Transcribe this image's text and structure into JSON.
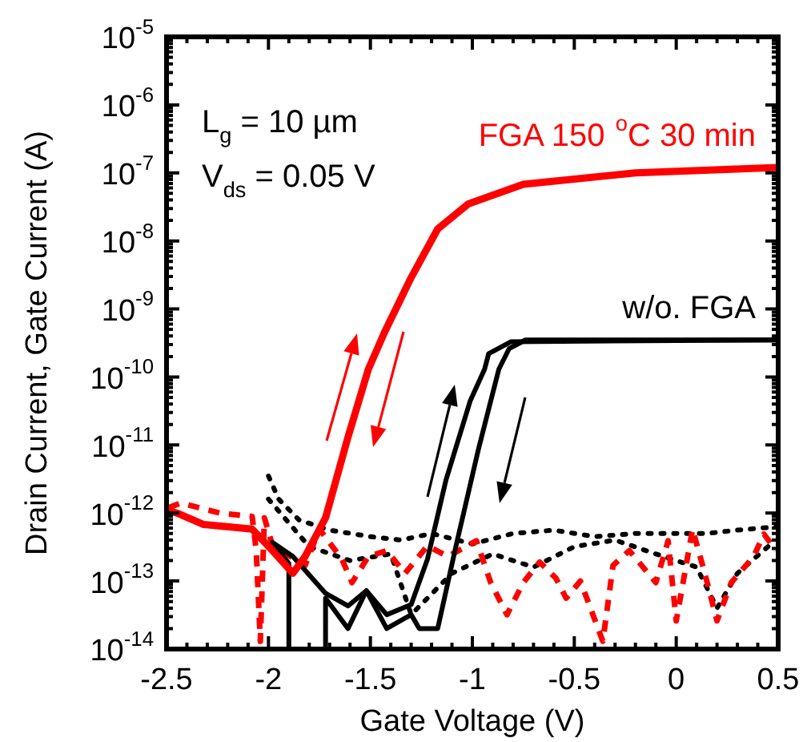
{
  "chart_data": {
    "type": "line",
    "xlabel": "Gate Voltage (V)",
    "ylabel": "Drain Current, Gate Current (A)",
    "log": "y",
    "grid": false,
    "legend": false,
    "marker": "none",
    "xlim": [
      -2.5,
      0.5
    ],
    "xticks": [
      -2.5,
      -2,
      -1.5,
      -1,
      -0.5,
      0,
      0.5
    ],
    "ylim": [
      1e-14,
      1e-05
    ],
    "yticks": [
      {
        "value": 1e-14,
        "label": "10$^{-14}$"
      },
      {
        "value": 1e-13,
        "label": "10$^{-13}$"
      },
      {
        "value": 1e-12,
        "label": "10$^{-12}$"
      },
      {
        "value": 1e-11,
        "label": "10$^{-11}$"
      },
      {
        "value": 1e-10,
        "label": "10$^{-10}$"
      },
      {
        "value": 1e-09,
        "label": "10$^{-9}$"
      },
      {
        "value": 1e-08,
        "label": "10$^{-8}$"
      },
      {
        "value": 1e-07,
        "label": "10$^{-7}$"
      },
      {
        "value": 1e-06,
        "label": "10$^{-6}$"
      },
      {
        "value": 1e-05,
        "label": "10$^{-5}$"
      }
    ],
    "annotations": [
      "L$_{g}$ = 10 µm",
      "V$_{ds}$ = 0.05 V",
      {
        "text": "FGA 150 $^{o}$C 30 min",
        "x": 0.5,
        "y": 1.2e-07
      },
      {
        "text": "w/o. FGA",
        "x": 0.5,
        "y": 3.5e-10
      }
    ],
    "series": [
      {
        "color": "#ff0000",
        "line_style": "solid",
        "x": [
          -2.5,
          -2.45,
          -2.32,
          -2.08,
          -1.98,
          -1.88,
          -1.82,
          -1.72,
          -1.61,
          -1.51,
          -1.43,
          -1.3,
          -1.17,
          -1.02,
          -0.75,
          -0.2,
          0.5
        ],
        "values": [
          1.1e-12,
          1e-12,
          6.8e-13,
          5.8e-13,
          2.8e-13,
          1.3e-13,
          2.3e-13,
          8.5e-13,
          1.3e-11,
          1.3e-10,
          4.6e-10,
          2.9e-09,
          1.5e-08,
          3.5e-08,
          6.8e-08,
          1e-07,
          1.2e-07
        ]
      },
      {
        "color": "#000000",
        "line_style": "solid",
        "x": [
          -1.9,
          -1.9,
          -1.98,
          -1.88,
          -1.72,
          -1.61,
          -1.52,
          -1.42,
          -1.3,
          -1.22,
          -1.13,
          -1.01,
          -0.94,
          -0.92,
          -0.81,
          0.5
        ],
        "values": [
          1e-14,
          1.8e-13,
          3.7e-13,
          2.3e-13,
          6.6e-14,
          4.3e-14,
          7.2e-14,
          3.2e-14,
          4.5e-14,
          2.1e-13,
          3e-12,
          4.5e-11,
          1.3e-10,
          2.2e-10,
          3.3e-10,
          3.5e-10
        ]
      },
      {
        "color": "#000000",
        "line_style": "solid",
        "x": [
          0.5,
          -0.74,
          -0.82,
          -0.87,
          -0.97,
          -1.08,
          -1.17,
          -1.26,
          -1.3,
          -1.42,
          -1.52,
          -1.61,
          -1.72,
          -1.72
        ],
        "values": [
          3.5e-10,
          3.5e-10,
          2.6e-10,
          1.3e-10,
          8.7e-12,
          3.3e-13,
          2e-14,
          2e-14,
          3.2e-14,
          2e-14,
          7.2e-14,
          2e-14,
          5.6e-14,
          1e-14
        ]
      },
      {
        "color": "#ff0000",
        "line_style": "dashed",
        "x": [
          -2.49,
          -2.43,
          -2.24,
          -2.08,
          -2.06,
          -2.04,
          -2.02,
          -1.98,
          -1.82,
          -1.75,
          -1.64,
          -1.59,
          -1.51,
          -1.42,
          -1.33,
          -1.22,
          -1.12,
          -0.98,
          -0.91,
          -0.83,
          -0.75,
          -0.67,
          -0.59,
          -0.54,
          -0.47,
          -0.36,
          -0.31,
          -0.23,
          -0.1,
          -0.04,
          0.0,
          0.08,
          0.14,
          0.2,
          0.27,
          0.38,
          0.43,
          0.49
        ],
        "values": [
          1.2e-12,
          1.4e-12,
          1e-12,
          8.9e-13,
          2.8e-13,
          1.3e-14,
          8.5e-13,
          3.3e-13,
          1.7e-13,
          5.8e-13,
          2.1e-13,
          9.5e-14,
          2.3e-13,
          2.8e-13,
          1.3e-13,
          3.3e-13,
          2.3e-13,
          3.9e-13,
          9.5e-14,
          3.2e-14,
          9.5e-14,
          1.9e-13,
          1.1e-13,
          5.6e-14,
          1e-13,
          1.3e-14,
          1.7e-13,
          2.8e-13,
          9.5e-14,
          3.9e-13,
          2.6e-14,
          5.8e-13,
          1.3e-13,
          2.6e-14,
          9.5e-14,
          2.3e-13,
          4.9e-13,
          2.8e-13
        ]
      },
      {
        "color": "#000000",
        "line_style": "dotted",
        "x": [
          -2.0,
          -1.95,
          -1.85,
          -1.7,
          -1.5,
          -1.35,
          -1.2,
          -1.0,
          -0.8,
          -0.6,
          -0.4,
          -0.2,
          0.0,
          0.15,
          0.3,
          0.5
        ],
        "values": [
          3.5e-12,
          1.6e-12,
          7.9e-13,
          5.6e-13,
          4.5e-13,
          4e-13,
          5e-13,
          3.5e-13,
          5e-13,
          5.6e-13,
          4.5e-13,
          5e-13,
          5e-13,
          5e-13,
          5.6e-13,
          6.3e-13
        ]
      },
      {
        "color": "#000000",
        "line_style": "dotted",
        "x": [
          -2.0,
          -1.8,
          -1.6,
          -1.4,
          -1.3,
          -1.1,
          -0.9,
          -0.7,
          -0.5,
          -0.3,
          -0.1,
          0.1,
          0.2,
          0.3,
          0.45
        ],
        "values": [
          1.6e-12,
          3.2e-13,
          2e-13,
          2.5e-13,
          3.2e-14,
          1.3e-13,
          2.5e-13,
          1.6e-13,
          3.2e-13,
          4e-13,
          2.5e-13,
          1.6e-13,
          4e-14,
          1.3e-13,
          3.2e-13
        ]
      }
    ]
  }
}
